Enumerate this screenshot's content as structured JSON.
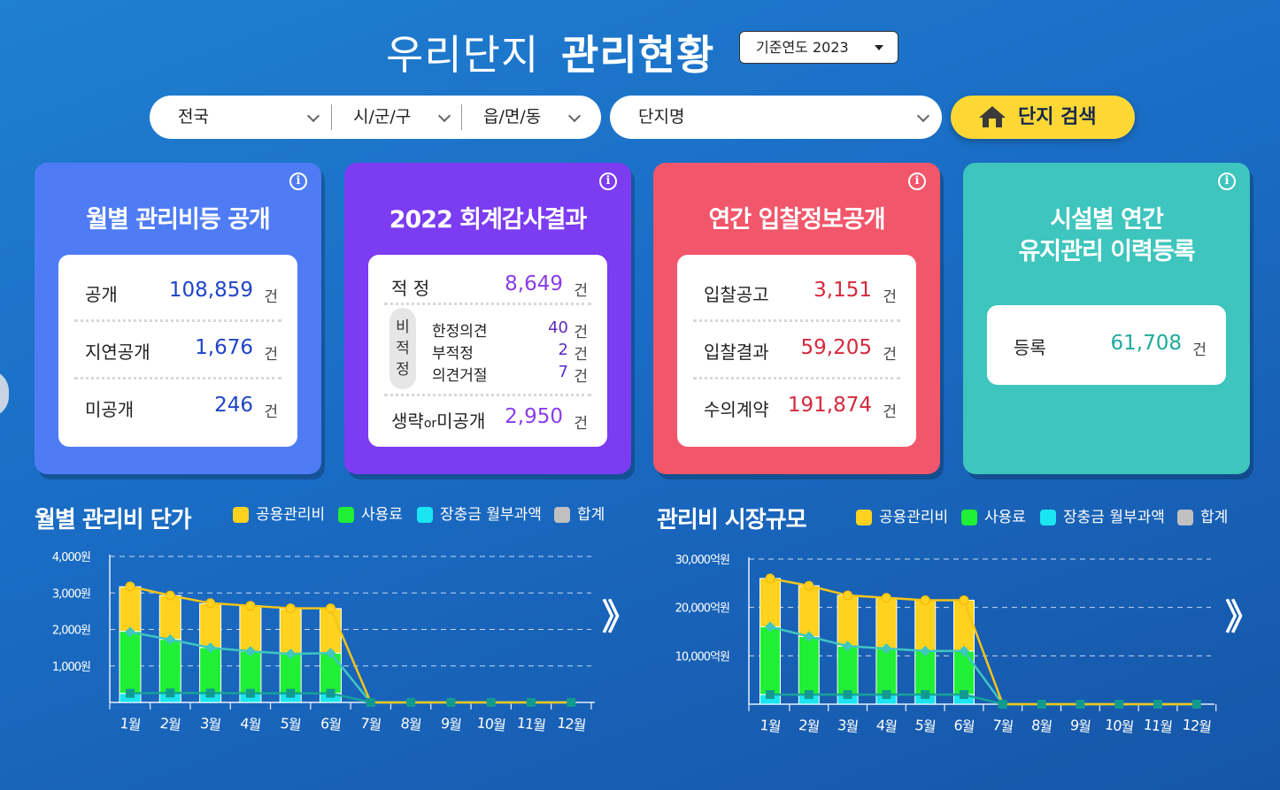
{
  "header": {
    "title_light": "우리단지",
    "title_bold": "관리현황",
    "year_select": "기준연도 2023"
  },
  "search": {
    "region": "전국",
    "district": "시/군/구",
    "town": "읍/면/동",
    "complex_placeholder": "단지명",
    "button_label": "단지 검색"
  },
  "cards": {
    "monthly": {
      "title": "월별 관리비등 공개",
      "rows": [
        {
          "label": "공개",
          "value": "108,859",
          "unit": "건"
        },
        {
          "label": "지연공개",
          "value": "1,676",
          "unit": "건"
        },
        {
          "label": "미공개",
          "value": "246",
          "unit": "건"
        }
      ]
    },
    "audit": {
      "title": "2022 회계감사결과",
      "pass": {
        "label": "적 정",
        "value": "8,649",
        "unit": "건"
      },
      "nonpass_label": [
        "비",
        "적",
        "정"
      ],
      "nonpass_rows": [
        {
          "label": "한정의견",
          "value": "40",
          "unit": "건"
        },
        {
          "label": "부적정",
          "value": "2",
          "unit": "건"
        },
        {
          "label": "의견거절",
          "value": "7",
          "unit": "건"
        }
      ],
      "omit": {
        "label_a": "생략",
        "label_or": "or",
        "label_b": "미공개",
        "value": "2,950",
        "unit": "건"
      }
    },
    "bidding": {
      "title": "연간 입찰정보공개",
      "rows": [
        {
          "label": "입찰공고",
          "value": "3,151",
          "unit": "건"
        },
        {
          "label": "입찰결과",
          "value": "59,205",
          "unit": "건"
        },
        {
          "label": "수의계약",
          "value": "191,874",
          "unit": "건"
        }
      ]
    },
    "facility": {
      "title_line1": "시설별 연간",
      "title_line2": "유지관리 이력등록",
      "row": {
        "label": "등록",
        "value": "61,708",
        "unit": "건"
      }
    },
    "info_glyph": "i"
  },
  "colors": {
    "common": "#ffd21f",
    "usage": "#1ff036",
    "reserve": "#19e6f0",
    "total": "#c0c0c0",
    "card_blue": "#4f7cf5",
    "card_purple": "#7b3cf2",
    "card_red": "#f2566a",
    "card_teal": "#3ec5bd"
  },
  "legend": [
    "공용관리비",
    "사용료",
    "장충금 월부과액",
    "합계"
  ],
  "next_glyph": "》",
  "chart_data": [
    {
      "type": "bar",
      "title": "월별 관리비 단가",
      "categories": [
        "1월",
        "2월",
        "3월",
        "4월",
        "5월",
        "6월",
        "7월",
        "8월",
        "9월",
        "10월",
        "11월",
        "12월"
      ],
      "y_ticks": [
        "4,000원",
        "3,000원",
        "2,000원",
        "1,000원"
      ],
      "ylim": [
        0,
        4000
      ],
      "stacked": true,
      "series": [
        {
          "name": "장충금 월부과액",
          "type": "bar",
          "values": [
            250,
            260,
            255,
            250,
            250,
            250,
            0,
            0,
            0,
            0,
            0,
            0
          ]
        },
        {
          "name": "사용료",
          "type": "bar",
          "values": [
            1700,
            1470,
            1250,
            1150,
            1080,
            1100,
            0,
            0,
            0,
            0,
            0,
            0
          ]
        },
        {
          "name": "공용관리비",
          "type": "bar",
          "values": [
            1220,
            1200,
            1200,
            1250,
            1230,
            1220,
            0,
            0,
            0,
            0,
            0,
            0
          ]
        },
        {
          "name": "합계",
          "type": "line",
          "color": "yellow",
          "values": [
            3180,
            2930,
            2720,
            2650,
            2580,
            2580,
            0,
            0,
            0,
            0,
            0,
            0
          ]
        },
        {
          "name": "사용료",
          "type": "line",
          "color": "teal",
          "values": [
            1930,
            1720,
            1500,
            1400,
            1330,
            1350,
            0,
            0,
            0,
            0,
            0,
            0
          ]
        },
        {
          "name": "장충금 월부과액",
          "type": "line",
          "color": "darkteal",
          "values": [
            250,
            260,
            255,
            250,
            250,
            250,
            0,
            0,
            0,
            0,
            0,
            0
          ]
        }
      ]
    },
    {
      "type": "bar",
      "title": "관리비 시장규모",
      "categories": [
        "1월",
        "2월",
        "3월",
        "4월",
        "5월",
        "6월",
        "7월",
        "8월",
        "9월",
        "10월",
        "11월",
        "12월"
      ],
      "y_ticks": [
        "30,000억원",
        "20,000억원",
        "10,000억원"
      ],
      "ylim": [
        0,
        30000
      ],
      "stacked": true,
      "series": [
        {
          "name": "장충금 월부과액",
          "type": "bar",
          "values": [
            2000,
            2000,
            2000,
            2000,
            2000,
            2000,
            0,
            0,
            0,
            0,
            0,
            0
          ]
        },
        {
          "name": "사용료",
          "type": "bar",
          "values": [
            14000,
            12000,
            10000,
            9500,
            9000,
            9000,
            0,
            0,
            0,
            0,
            0,
            0
          ]
        },
        {
          "name": "공용관리비",
          "type": "bar",
          "values": [
            10000,
            10500,
            10500,
            10500,
            10500,
            10500,
            0,
            0,
            0,
            0,
            0,
            0
          ]
        },
        {
          "name": "합계",
          "type": "line",
          "color": "yellow",
          "values": [
            26000,
            24500,
            22500,
            22000,
            21500,
            21500,
            0,
            0,
            0,
            0,
            0,
            0
          ]
        },
        {
          "name": "사용료",
          "type": "line",
          "color": "teal",
          "values": [
            16000,
            14000,
            12000,
            11500,
            11000,
            11000,
            0,
            0,
            0,
            0,
            0,
            0
          ]
        },
        {
          "name": "장충금 월부과액",
          "type": "line",
          "color": "darkteal",
          "values": [
            2000,
            2000,
            2000,
            2000,
            2000,
            2000,
            0,
            0,
            0,
            0,
            0,
            0
          ]
        }
      ]
    }
  ]
}
